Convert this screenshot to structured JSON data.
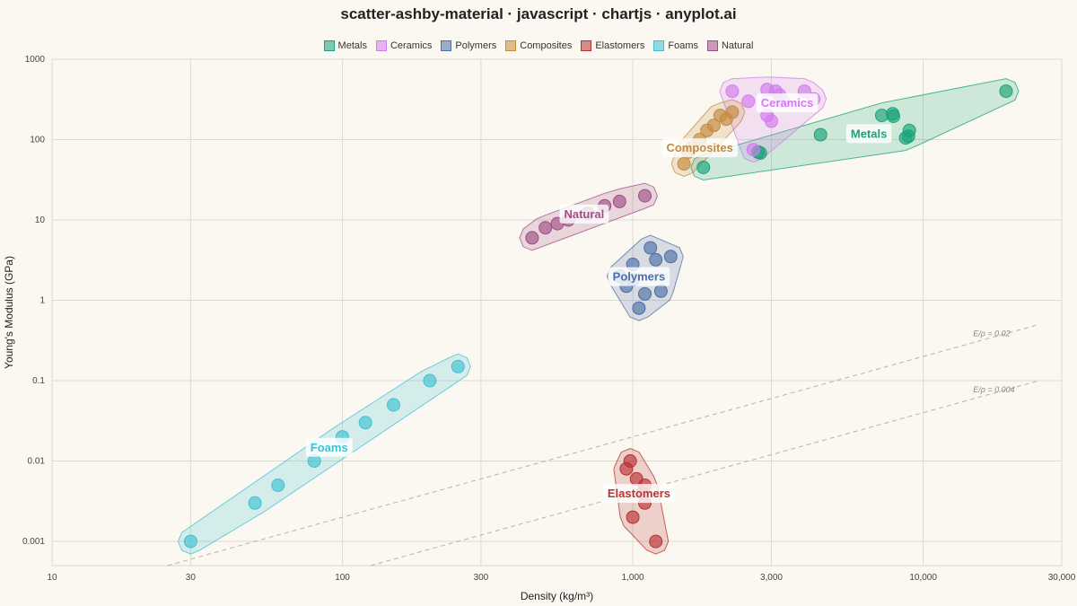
{
  "title": "scatter-ashby-material · javascript · chartjs · anyplot.ai",
  "chart_data": {
    "type": "scatter",
    "xscale": "log",
    "yscale": "log",
    "xlabel": "Density  (kg/m³)",
    "ylabel": "Young's Modulus  (GPa)",
    "xlim": [
      10,
      30000
    ],
    "ylim": [
      0.0005,
      1000
    ],
    "grid": true,
    "legend_position": "top",
    "x_ticks": [
      {
        "value": 10,
        "label": "10"
      },
      {
        "value": 30,
        "label": "30"
      },
      {
        "value": 100,
        "label": "100"
      },
      {
        "value": 300,
        "label": "300"
      },
      {
        "value": 1000,
        "label": "1,000"
      },
      {
        "value": 3000,
        "label": "3,000"
      },
      {
        "value": 10000,
        "label": "10,000"
      },
      {
        "value": 30000,
        "label": "30,000"
      }
    ],
    "y_ticks": [
      {
        "value": 0.001,
        "label": "0.001"
      },
      {
        "value": 0.01,
        "label": "0.01"
      },
      {
        "value": 0.1,
        "label": "0.1"
      },
      {
        "value": 1,
        "label": "1"
      },
      {
        "value": 10,
        "label": "10"
      },
      {
        "value": 100,
        "label": "100"
      },
      {
        "value": 1000,
        "label": "1000"
      }
    ],
    "reference_lines": [
      {
        "label": "E/ρ = 0.02",
        "slope_const": 2e-05,
        "x_from": 20,
        "x_to": 25000
      },
      {
        "label": "E/ρ = 0.004",
        "slope_const": 4e-06,
        "x_from": 100,
        "x_to": 25000
      }
    ],
    "series": [
      {
        "name": "Metals",
        "color": "#1aa37a",
        "label_at": [
          6500,
          120
        ],
        "points": [
          [
            1750,
            45
          ],
          [
            2700,
            70
          ],
          [
            2750,
            68
          ],
          [
            4430,
            115
          ],
          [
            7200,
            200
          ],
          [
            7850,
            210
          ],
          [
            7900,
            195
          ],
          [
            8900,
            110
          ],
          [
            8700,
            105
          ],
          [
            8960,
            130
          ],
          [
            19300,
            400
          ]
        ]
      },
      {
        "name": "Ceramics",
        "color": "#d27bf0",
        "label_at": [
          3400,
          290
        ],
        "points": [
          [
            2200,
            400
          ],
          [
            2500,
            300
          ],
          [
            2600,
            75
          ],
          [
            2900,
            420
          ],
          [
            3100,
            400
          ],
          [
            3000,
            170
          ],
          [
            3200,
            360
          ],
          [
            3300,
            300
          ],
          [
            3900,
            400
          ],
          [
            4200,
            320
          ],
          [
            2900,
            200
          ]
        ]
      },
      {
        "name": "Polymers",
        "color": "#4e6ea8",
        "label_at": [
          1050,
          2.0
        ],
        "points": [
          [
            900,
            2.0
          ],
          [
            950,
            1.5
          ],
          [
            1000,
            2.8
          ],
          [
            1050,
            0.8
          ],
          [
            1100,
            1.2
          ],
          [
            1150,
            4.5
          ],
          [
            1200,
            3.2
          ],
          [
            1250,
            1.3
          ],
          [
            1350,
            3.5
          ],
          [
            1000,
            1.8
          ]
        ]
      },
      {
        "name": "Composites",
        "color": "#c48a3e",
        "label_at": [
          1700,
          80
        ],
        "points": [
          [
            1500,
            50
          ],
          [
            1550,
            70
          ],
          [
            1600,
            80
          ],
          [
            1700,
            100
          ],
          [
            1800,
            130
          ],
          [
            1900,
            150
          ],
          [
            2000,
            200
          ],
          [
            2100,
            180
          ],
          [
            2200,
            220
          ]
        ]
      },
      {
        "name": "Elastomers",
        "color": "#b83232",
        "label_at": [
          1050,
          0.004
        ],
        "points": [
          [
            950,
            0.008
          ],
          [
            980,
            0.01
          ],
          [
            1030,
            0.006
          ],
          [
            1080,
            0.004
          ],
          [
            1100,
            0.005
          ],
          [
            1000,
            0.002
          ],
          [
            1100,
            0.003
          ],
          [
            1200,
            0.001
          ]
        ]
      },
      {
        "name": "Foams",
        "color": "#3fc1d4",
        "label_at": [
          90,
          0.015
        ],
        "points": [
          [
            30,
            0.001
          ],
          [
            50,
            0.003
          ],
          [
            60,
            0.005
          ],
          [
            80,
            0.01
          ],
          [
            100,
            0.02
          ],
          [
            120,
            0.03
          ],
          [
            150,
            0.05
          ],
          [
            200,
            0.1
          ],
          [
            250,
            0.15
          ]
        ]
      },
      {
        "name": "Natural",
        "color": "#a04e86",
        "label_at": [
          680,
          12
        ],
        "points": [
          [
            450,
            6
          ],
          [
            500,
            8
          ],
          [
            550,
            9
          ],
          [
            600,
            10
          ],
          [
            700,
            12
          ],
          [
            800,
            15
          ],
          [
            900,
            17
          ],
          [
            1100,
            20
          ]
        ]
      }
    ]
  }
}
